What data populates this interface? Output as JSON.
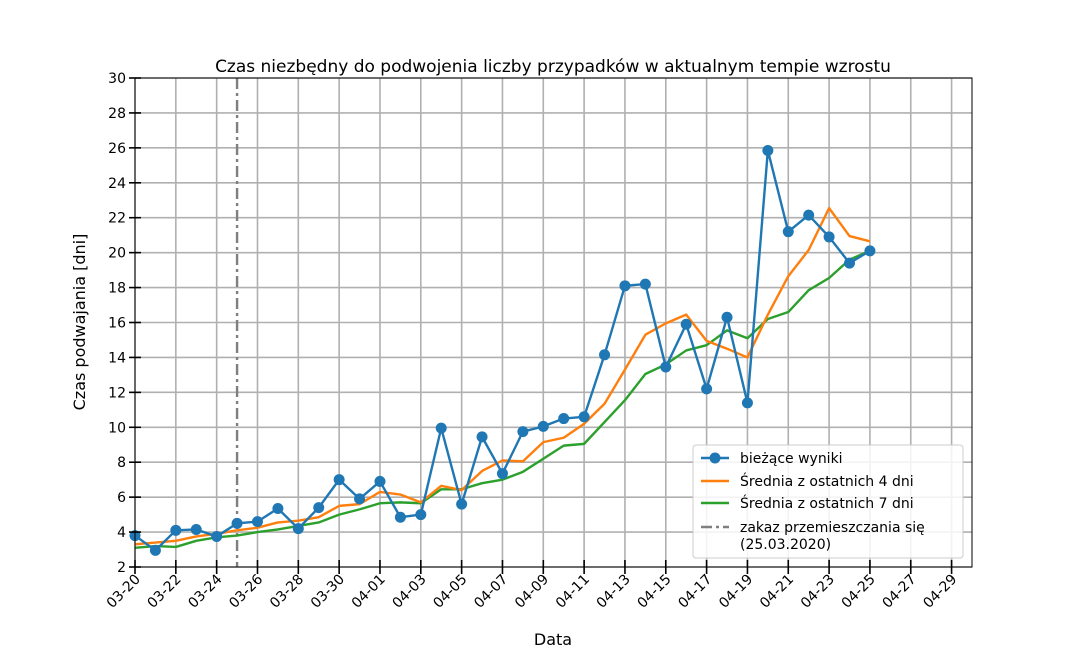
{
  "chart_data": {
    "type": "line",
    "title": "Czas niezbędny do podwojenia liczby przypadków w aktualnym tempie wzrostu",
    "xlabel": "Data",
    "ylabel": "Czas podwajania [dni]",
    "ylim": [
      2,
      30
    ],
    "yticks": [
      2,
      4,
      6,
      8,
      10,
      12,
      14,
      16,
      18,
      20,
      22,
      24,
      26,
      28,
      30
    ],
    "xlim": [
      "2020-03-20",
      "2020-04-30"
    ],
    "xtick_labels": [
      "03-20",
      "03-22",
      "03-24",
      "03-26",
      "03-28",
      "03-30",
      "04-01",
      "04-03",
      "04-05",
      "04-07",
      "04-09",
      "04-11",
      "04-13",
      "04-15",
      "04-17",
      "04-19",
      "04-21",
      "04-23",
      "04-25",
      "04-27",
      "04-29"
    ],
    "grid": true,
    "legend_position": "lower right",
    "dates": [
      "2020-03-20",
      "2020-03-21",
      "2020-03-22",
      "2020-03-23",
      "2020-03-24",
      "2020-03-25",
      "2020-03-26",
      "2020-03-27",
      "2020-03-28",
      "2020-03-29",
      "2020-03-30",
      "2020-03-31",
      "2020-04-01",
      "2020-04-02",
      "2020-04-03",
      "2020-04-04",
      "2020-04-05",
      "2020-04-06",
      "2020-04-07",
      "2020-04-08",
      "2020-04-09",
      "2020-04-10",
      "2020-04-11",
      "2020-04-12",
      "2020-04-13",
      "2020-04-14",
      "2020-04-15",
      "2020-04-16",
      "2020-04-17",
      "2020-04-18",
      "2020-04-19",
      "2020-04-20",
      "2020-04-21",
      "2020-04-22",
      "2020-04-23",
      "2020-04-24",
      "2020-04-25"
    ],
    "series": [
      {
        "name": "bieżące wyniki",
        "color": "#1f77b4",
        "markers": true,
        "values": [
          3.8,
          2.95,
          4.1,
          4.15,
          3.75,
          4.5,
          4.6,
          5.35,
          4.2,
          5.4,
          7.0,
          5.9,
          6.9,
          4.85,
          5.0,
          9.95,
          5.6,
          9.45,
          7.35,
          9.75,
          10.05,
          10.5,
          10.6,
          14.15,
          18.1,
          18.2,
          13.45,
          15.9,
          12.2,
          16.3,
          11.4,
          25.85,
          21.2,
          22.15,
          20.9,
          19.4,
          20.1
        ]
      },
      {
        "name": "Średnia z ostatnich 4 dni",
        "color": "#ff7f0e",
        "markers": false,
        "values": [
          3.3,
          3.4,
          3.5,
          3.75,
          3.9,
          4.1,
          4.25,
          4.55,
          4.65,
          4.85,
          5.5,
          5.6,
          6.3,
          6.15,
          5.7,
          6.65,
          6.4,
          7.5,
          8.1,
          8.05,
          9.15,
          9.4,
          10.2,
          11.35,
          13.3,
          15.3,
          15.95,
          16.45,
          14.95,
          14.5,
          14.0,
          16.45,
          18.65,
          20.15,
          22.55,
          20.95,
          20.65
        ]
      },
      {
        "name": "Średnia z ostatnich 7 dni",
        "color": "#2ca02c",
        "markers": false,
        "values": [
          3.1,
          3.2,
          3.15,
          3.5,
          3.7,
          3.8,
          4.0,
          4.15,
          4.35,
          4.55,
          5.0,
          5.3,
          5.65,
          5.7,
          5.65,
          6.45,
          6.45,
          6.8,
          7.0,
          7.45,
          8.2,
          8.95,
          9.05,
          10.3,
          11.55,
          13.05,
          13.6,
          14.4,
          14.7,
          15.55,
          15.1,
          16.2,
          16.6,
          17.85,
          18.55,
          19.6,
          20.1
        ]
      }
    ],
    "annotation": {
      "label": "zakaz przemieszczania się\n(25.03.2020)",
      "date": "2020-03-25",
      "color": "#7f7f7f",
      "style": "dash-dot"
    }
  }
}
